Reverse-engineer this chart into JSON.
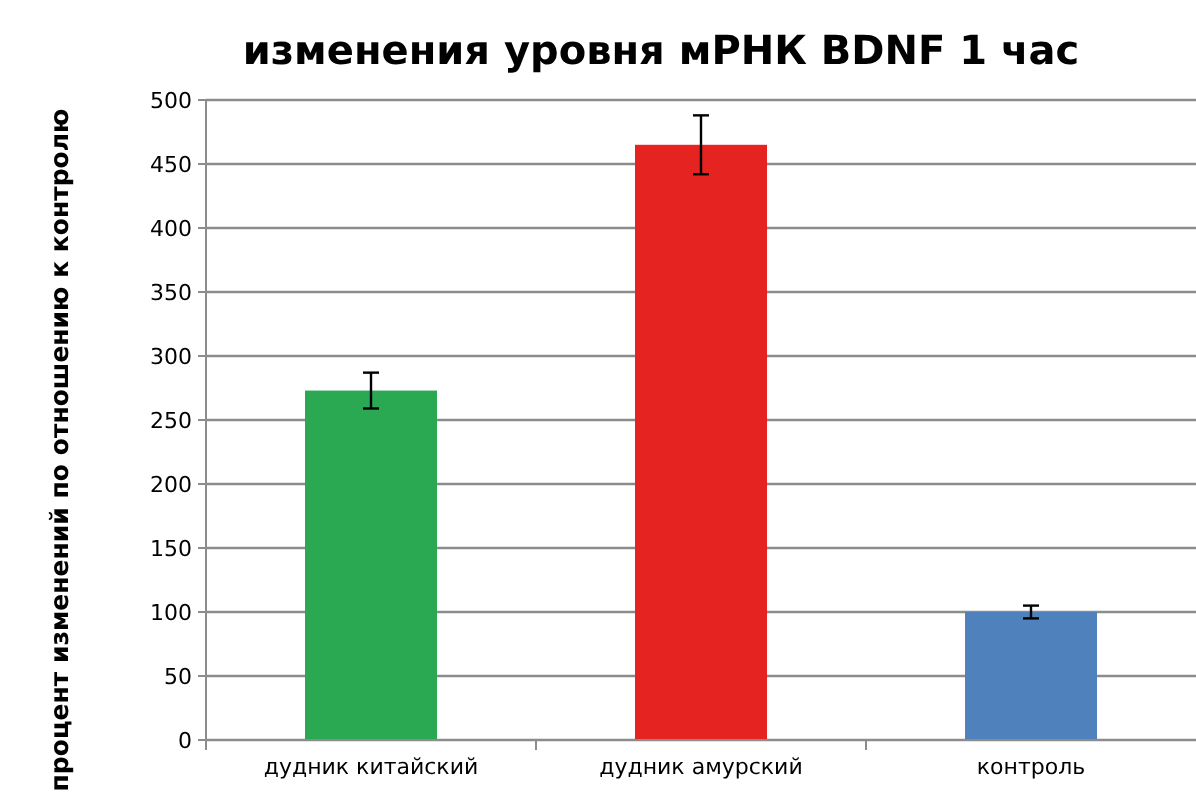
{
  "chart_data": {
    "type": "bar",
    "title": "изменения уровня мРНК BDNF 1 час",
    "ylabel": "процент изменений по отношению к контролю",
    "categories": [
      "дудник китайский",
      "дудник амурский",
      "контроль"
    ],
    "values": [
      273,
      465,
      100
    ],
    "colors": [
      "#2aa952",
      "#e52421",
      "#4f81bd"
    ],
    "errors": [
      14,
      23,
      5
    ],
    "ylim": [
      0,
      500
    ],
    "yticks": [
      0,
      50,
      100,
      150,
      200,
      250,
      300,
      350,
      400,
      450,
      500
    ],
    "grid": "y"
  }
}
